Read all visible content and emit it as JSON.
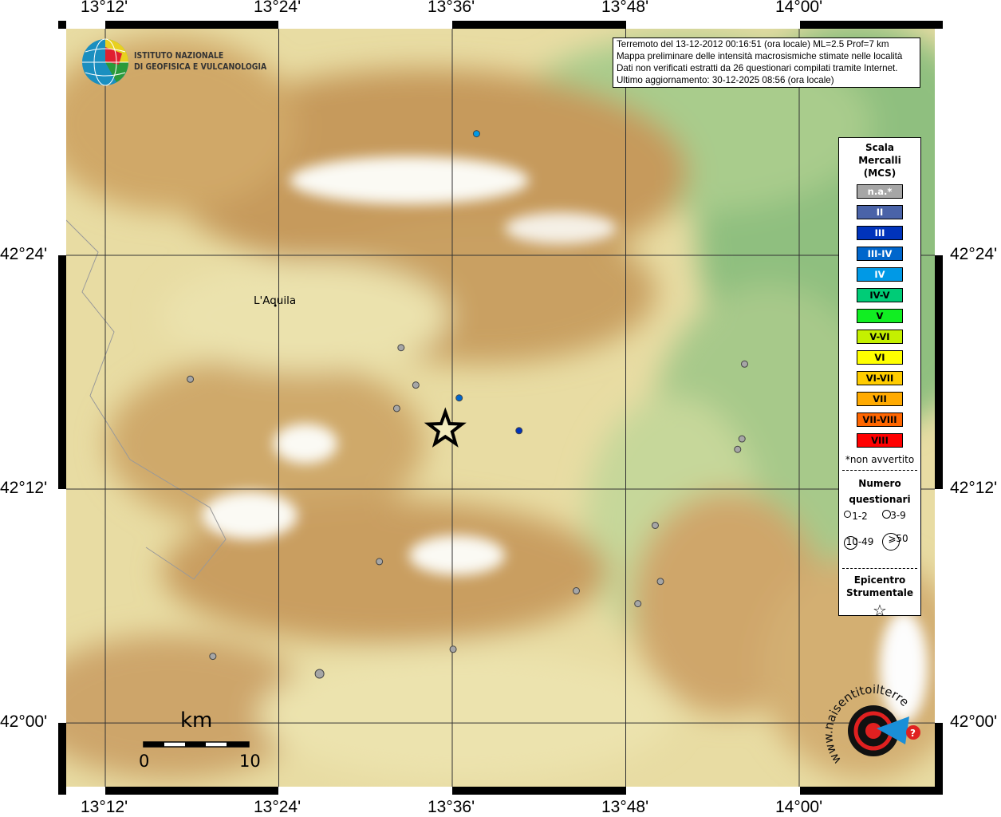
{
  "map": {
    "lon_ticks": [
      "13°12'",
      "13°24'",
      "13°36'",
      "13°48'",
      "14°00'"
    ],
    "lat_ticks": [
      "42°24'",
      "42°12'",
      "42°00'"
    ],
    "extent": {
      "lon": [
        13.1,
        14.1
      ],
      "lat": [
        41.95,
        42.58
      ]
    },
    "grid_lon": [
      13.2,
      13.4,
      13.6,
      13.8,
      14.0
    ],
    "grid_lat": [
      42.4,
      42.2,
      42.0
    ],
    "city": {
      "name": "L'Aquila",
      "lon": 13.396,
      "lat": 42.357
    },
    "epicenter": {
      "lon": 13.592,
      "lat": 42.251
    },
    "points": [
      {
        "lon": 13.628,
        "lat": 42.504,
        "intensity": "IV",
        "count": "1-2"
      },
      {
        "lon": 13.541,
        "lat": 42.321,
        "intensity": "n.a.*",
        "count": "1-2"
      },
      {
        "lon": 13.558,
        "lat": 42.289,
        "intensity": "n.a.*",
        "count": "1-2"
      },
      {
        "lon": 13.536,
        "lat": 42.269,
        "intensity": "n.a.*",
        "count": "1-2"
      },
      {
        "lon": 13.608,
        "lat": 42.278,
        "intensity": "III-IV",
        "count": "1-2"
      },
      {
        "lon": 13.677,
        "lat": 42.25,
        "intensity": "III",
        "count": "1-2"
      },
      {
        "lon": 13.298,
        "lat": 42.294,
        "intensity": "n.a.*",
        "count": "1-2"
      },
      {
        "lon": 13.937,
        "lat": 42.307,
        "intensity": "n.a.*",
        "count": "1-2"
      },
      {
        "lon": 13.934,
        "lat": 42.243,
        "intensity": "n.a.*",
        "count": "1-2"
      },
      {
        "lon": 13.929,
        "lat": 42.234,
        "intensity": "n.a.*",
        "count": "1-2"
      },
      {
        "lon": 13.834,
        "lat": 42.169,
        "intensity": "n.a.*",
        "count": "1-2"
      },
      {
        "lon": 13.516,
        "lat": 42.138,
        "intensity": "n.a.*",
        "count": "1-2"
      },
      {
        "lon": 13.84,
        "lat": 42.121,
        "intensity": "n.a.*",
        "count": "1-2"
      },
      {
        "lon": 13.743,
        "lat": 42.113,
        "intensity": "n.a.*",
        "count": "1-2"
      },
      {
        "lon": 13.814,
        "lat": 42.102,
        "intensity": "n.a.*",
        "count": "1-2"
      },
      {
        "lon": 13.601,
        "lat": 42.063,
        "intensity": "n.a.*",
        "count": "1-2"
      },
      {
        "lon": 13.324,
        "lat": 42.057,
        "intensity": "n.a.*",
        "count": "1-2"
      },
      {
        "lon": 13.447,
        "lat": 42.042,
        "intensity": "n.a.*",
        "count": "3-9"
      }
    ]
  },
  "info": {
    "line1": "Terremoto del 13-12-2012 00:16:51 (ora locale) ML=2.5 Prof=7 km",
    "line2": "Mappa preliminare delle intensità macrosismiche stimate nelle località",
    "line3": "Dati non verificati estratti da 26 questionari compilati tramite Internet.",
    "line4": "Ultimo aggiornamento: 30-12-2025 08:56 (ora locale)"
  },
  "logo": {
    "line1": "ISTITUTO NAZIONALE",
    "line2": "DI GEOFISICA E VULCANOLOGIA"
  },
  "logo2": {
    "text": "www.haisentitoilterremoto.it"
  },
  "legend": {
    "title1": "Scala",
    "title2": "Mercalli",
    "title3": "(MCS)",
    "classes": [
      {
        "label": "n.a.*",
        "color": "#a6a6a6",
        "text": "#ffffff"
      },
      {
        "label": "II",
        "color": "#4a63a8",
        "text": "#ffffff"
      },
      {
        "label": "III",
        "color": "#0033bb",
        "text": "#ffffff"
      },
      {
        "label": "III-IV",
        "color": "#0066cc",
        "text": "#ffffff"
      },
      {
        "label": "IV",
        "color": "#0099e6",
        "text": "#ffffff"
      },
      {
        "label": "IV-V",
        "color": "#00cc77",
        "text": "#000000"
      },
      {
        "label": "V",
        "color": "#11ee22",
        "text": "#000000"
      },
      {
        "label": "V-VI",
        "color": "#c4f000",
        "text": "#000000"
      },
      {
        "label": "VI",
        "color": "#ffff00",
        "text": "#000000"
      },
      {
        "label": "VI-VII",
        "color": "#ffcc00",
        "text": "#000000"
      },
      {
        "label": "VII",
        "color": "#ffaa00",
        "text": "#000000"
      },
      {
        "label": "VII-VIII",
        "color": "#ff6600",
        "text": "#000000"
      },
      {
        "label": "VIII",
        "color": "#ff0000",
        "text": "#000000"
      }
    ],
    "note": "*non avvertito",
    "count_title1": "Numero",
    "count_title2": "questionari",
    "counts": [
      "1-2",
      "3-9",
      "10-49",
      "⩾50"
    ],
    "epi_title1": "Epicentro",
    "epi_title2": "Strumentale",
    "epi_symbol": "☆"
  },
  "scalebar": {
    "unit": "km",
    "min": "0",
    "max": "10"
  }
}
